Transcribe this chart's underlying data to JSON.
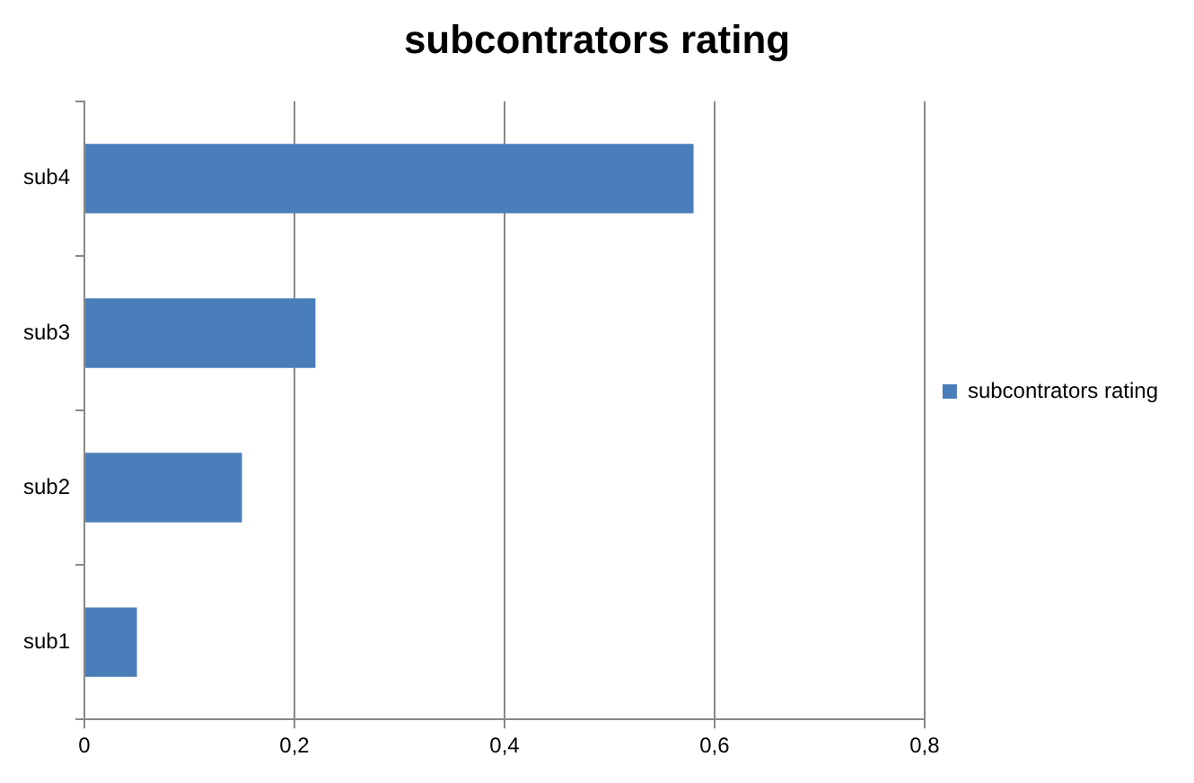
{
  "chart_data": {
    "type": "bar",
    "orientation": "horizontal",
    "title": "subcontrators rating",
    "categories": [
      "sub4",
      "sub3",
      "sub2",
      "sub1"
    ],
    "series": [
      {
        "name": "subcontrators rating",
        "color": "#4a7ebb",
        "values": [
          0.58,
          0.22,
          0.15,
          0.05
        ]
      }
    ],
    "xlim": [
      0,
      0.8
    ],
    "xticks": [
      0,
      {
        "value": 0.2,
        "label": "0,2"
      },
      {
        "value": 0.4,
        "label": "0,4"
      },
      {
        "value": 0.6,
        "label": "0,6"
      },
      {
        "value": 0.8,
        "label": "0,8"
      }
    ],
    "grid": "x",
    "legend": "right"
  }
}
